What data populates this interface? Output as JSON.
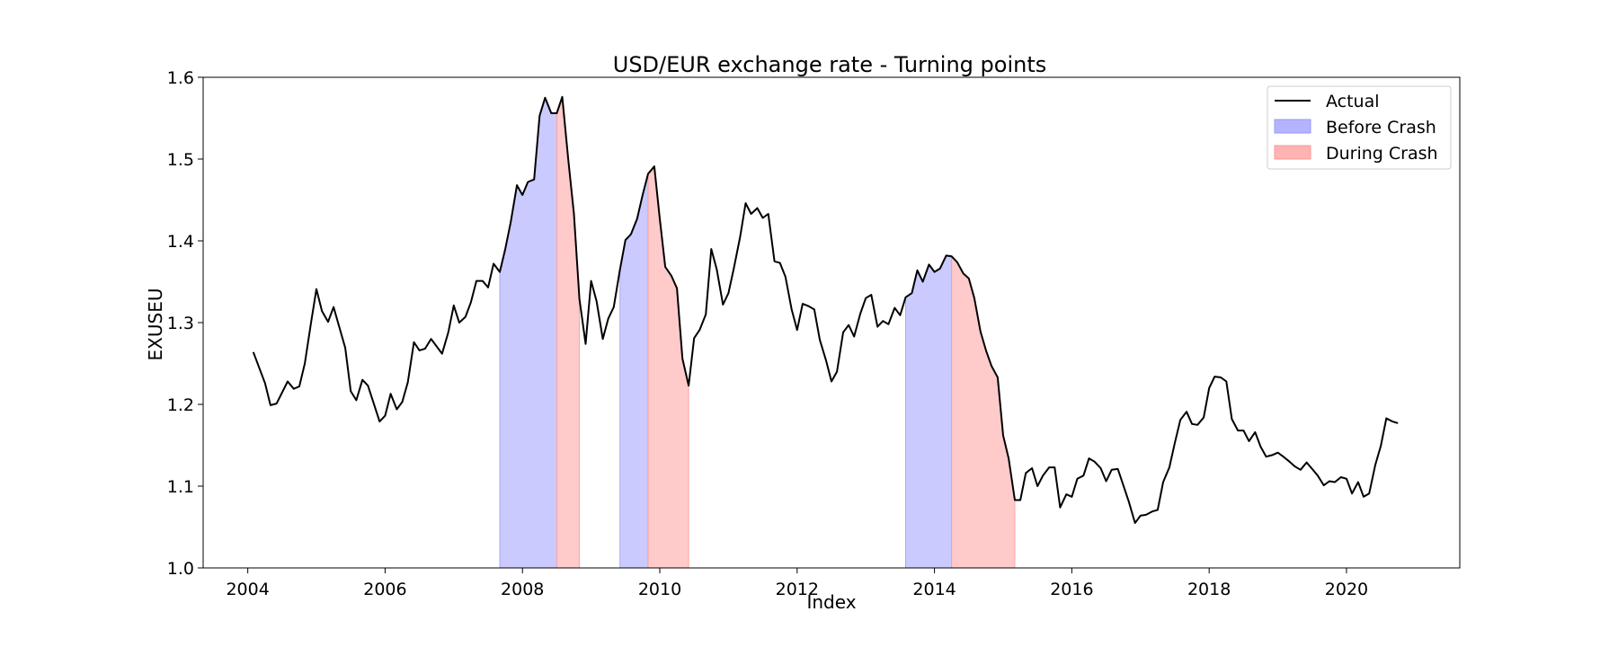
{
  "chart_data": {
    "type": "line",
    "title": "USD/EUR exchange rate - Turning points",
    "xlabel": "Index",
    "ylabel": "EXUSEU",
    "xlim": [
      2003.35,
      2021.65
    ],
    "ylim": [
      1.0,
      1.6
    ],
    "x_ticks": [
      2004,
      2006,
      2008,
      2010,
      2012,
      2014,
      2016,
      2018,
      2020
    ],
    "x_tick_labels": [
      "2004",
      "2006",
      "2008",
      "2010",
      "2012",
      "2014",
      "2016",
      "2018",
      "2020"
    ],
    "y_ticks": [
      1.0,
      1.1,
      1.2,
      1.3,
      1.4,
      1.5,
      1.6
    ],
    "y_tick_labels": [
      "1.0",
      "1.1",
      "1.2",
      "1.3",
      "1.4",
      "1.5",
      "1.6"
    ],
    "grid": false,
    "legend_position": "top-right",
    "legend": [
      "Actual",
      "Before Crash",
      "During Crash"
    ],
    "colors": {
      "line": "#000000",
      "before": "#b3b3ff",
      "during": "#ffb3b3"
    },
    "series": [
      {
        "name": "Actual",
        "x": [
          2004.08,
          2004.25,
          2004.33,
          2004.42,
          2004.58,
          2004.67,
          2004.75,
          2004.83,
          2004.92,
          2005.0,
          2005.08,
          2005.17,
          2005.25,
          2005.42,
          2005.5,
          2005.58,
          2005.67,
          2005.75,
          2005.92,
          2006.0,
          2006.08,
          2006.17,
          2006.25,
          2006.33,
          2006.42,
          2006.5,
          2006.58,
          2006.67,
          2006.83,
          2006.92,
          2007.0,
          2007.08,
          2007.17,
          2007.25,
          2007.33,
          2007.42,
          2007.5,
          2007.58,
          2007.67,
          2007.75,
          2007.83,
          2007.92,
          2008.0,
          2008.08,
          2008.17,
          2008.25,
          2008.33,
          2008.42,
          2008.5,
          2008.58,
          2008.67,
          2008.75,
          2008.83,
          2008.92,
          2009.0,
          2009.08,
          2009.17,
          2009.25,
          2009.33,
          2009.42,
          2009.5,
          2009.58,
          2009.67,
          2009.75,
          2009.83,
          2009.92,
          2010.0,
          2010.08,
          2010.17,
          2010.25,
          2010.33,
          2010.42,
          2010.5,
          2010.58,
          2010.67,
          2010.75,
          2010.83,
          2010.92,
          2011.0,
          2011.08,
          2011.17,
          2011.25,
          2011.33,
          2011.42,
          2011.5,
          2011.58,
          2011.67,
          2011.75,
          2011.83,
          2011.92,
          2012.0,
          2012.08,
          2012.17,
          2012.25,
          2012.33,
          2012.42,
          2012.5,
          2012.58,
          2012.67,
          2012.75,
          2012.83,
          2012.92,
          2013.0,
          2013.08,
          2013.17,
          2013.25,
          2013.33,
          2013.42,
          2013.5,
          2013.58,
          2013.67,
          2013.75,
          2013.83,
          2013.92,
          2014.0,
          2014.08,
          2014.17,
          2014.25,
          2014.33,
          2014.42,
          2014.5,
          2014.58,
          2014.67,
          2014.75,
          2014.83,
          2014.92,
          2015.0,
          2015.08,
          2015.17,
          2015.25,
          2015.33,
          2015.42,
          2015.5,
          2015.58,
          2015.67,
          2015.75,
          2015.83,
          2015.92,
          2016.0,
          2016.08,
          2016.17,
          2016.25,
          2016.33,
          2016.42,
          2016.5,
          2016.58,
          2016.67,
          2016.75,
          2016.83,
          2016.92,
          2017.0,
          2017.08,
          2017.17,
          2017.25,
          2017.33,
          2017.42,
          2017.5,
          2017.58,
          2017.67,
          2017.75,
          2017.83,
          2017.92,
          2018.0,
          2018.08,
          2018.17,
          2018.25,
          2018.33,
          2018.42,
          2018.5,
          2018.58,
          2018.67,
          2018.75,
          2018.83,
          2018.92,
          2019.0,
          2019.08,
          2019.17,
          2019.25,
          2019.33,
          2019.42,
          2019.5,
          2019.58,
          2019.67,
          2019.75,
          2019.83,
          2019.92,
          2020.0,
          2020.08,
          2020.17,
          2020.25,
          2020.33,
          2020.42,
          2020.5,
          2020.58,
          2020.67,
          2020.75
        ],
        "y": [
          1.264,
          1.226,
          1.199,
          1.201,
          1.228,
          1.219,
          1.222,
          1.25,
          1.299,
          1.341,
          1.314,
          1.301,
          1.319,
          1.269,
          1.216,
          1.205,
          1.23,
          1.223,
          1.179,
          1.186,
          1.213,
          1.194,
          1.203,
          1.227,
          1.276,
          1.266,
          1.268,
          1.28,
          1.262,
          1.288,
          1.321,
          1.3,
          1.307,
          1.325,
          1.351,
          1.351,
          1.343,
          1.372,
          1.362,
          1.39,
          1.423,
          1.468,
          1.456,
          1.472,
          1.475,
          1.553,
          1.575,
          1.556,
          1.556,
          1.576,
          1.497,
          1.433,
          1.329,
          1.274,
          1.351,
          1.326,
          1.28,
          1.305,
          1.319,
          1.365,
          1.401,
          1.408,
          1.427,
          1.456,
          1.482,
          1.491,
          1.427,
          1.368,
          1.357,
          1.342,
          1.256,
          1.223,
          1.281,
          1.291,
          1.31,
          1.39,
          1.365,
          1.322,
          1.336,
          1.367,
          1.405,
          1.446,
          1.433,
          1.44,
          1.428,
          1.433,
          1.375,
          1.373,
          1.356,
          1.316,
          1.291,
          1.323,
          1.32,
          1.316,
          1.279,
          1.254,
          1.228,
          1.24,
          1.288,
          1.297,
          1.283,
          1.311,
          1.33,
          1.334,
          1.295,
          1.302,
          1.298,
          1.318,
          1.309,
          1.331,
          1.336,
          1.364,
          1.35,
          1.371,
          1.362,
          1.366,
          1.382,
          1.381,
          1.374,
          1.36,
          1.354,
          1.33,
          1.289,
          1.266,
          1.247,
          1.233,
          1.162,
          1.134,
          1.083,
          1.083,
          1.116,
          1.122,
          1.1,
          1.113,
          1.123,
          1.123,
          1.074,
          1.09,
          1.087,
          1.109,
          1.113,
          1.134,
          1.13,
          1.122,
          1.106,
          1.12,
          1.121,
          1.101,
          1.081,
          1.055,
          1.064,
          1.065,
          1.069,
          1.071,
          1.105,
          1.123,
          1.153,
          1.181,
          1.191,
          1.176,
          1.175,
          1.184,
          1.22,
          1.234,
          1.233,
          1.228,
          1.182,
          1.168,
          1.168,
          1.155,
          1.166,
          1.148,
          1.136,
          1.138,
          1.141,
          1.136,
          1.13,
          1.124,
          1.12,
          1.129,
          1.121,
          1.113,
          1.101,
          1.106,
          1.105,
          1.111,
          1.109,
          1.091,
          1.105,
          1.087,
          1.091,
          1.126,
          1.149,
          1.183,
          1.179,
          1.177
        ]
      }
    ],
    "shaded_regions": [
      {
        "label": "Before Crash",
        "x": [
          2007.67,
          2008.5
        ]
      },
      {
        "label": "During Crash",
        "x": [
          2008.5,
          2008.83
        ]
      },
      {
        "label": "Before Crash",
        "x": [
          2009.42,
          2009.83
        ]
      },
      {
        "label": "During Crash",
        "x": [
          2009.83,
          2010.42
        ]
      },
      {
        "label": "Before Crash",
        "x": [
          2013.58,
          2014.25
        ]
      },
      {
        "label": "During Crash",
        "x": [
          2014.25,
          2015.17
        ]
      }
    ]
  }
}
